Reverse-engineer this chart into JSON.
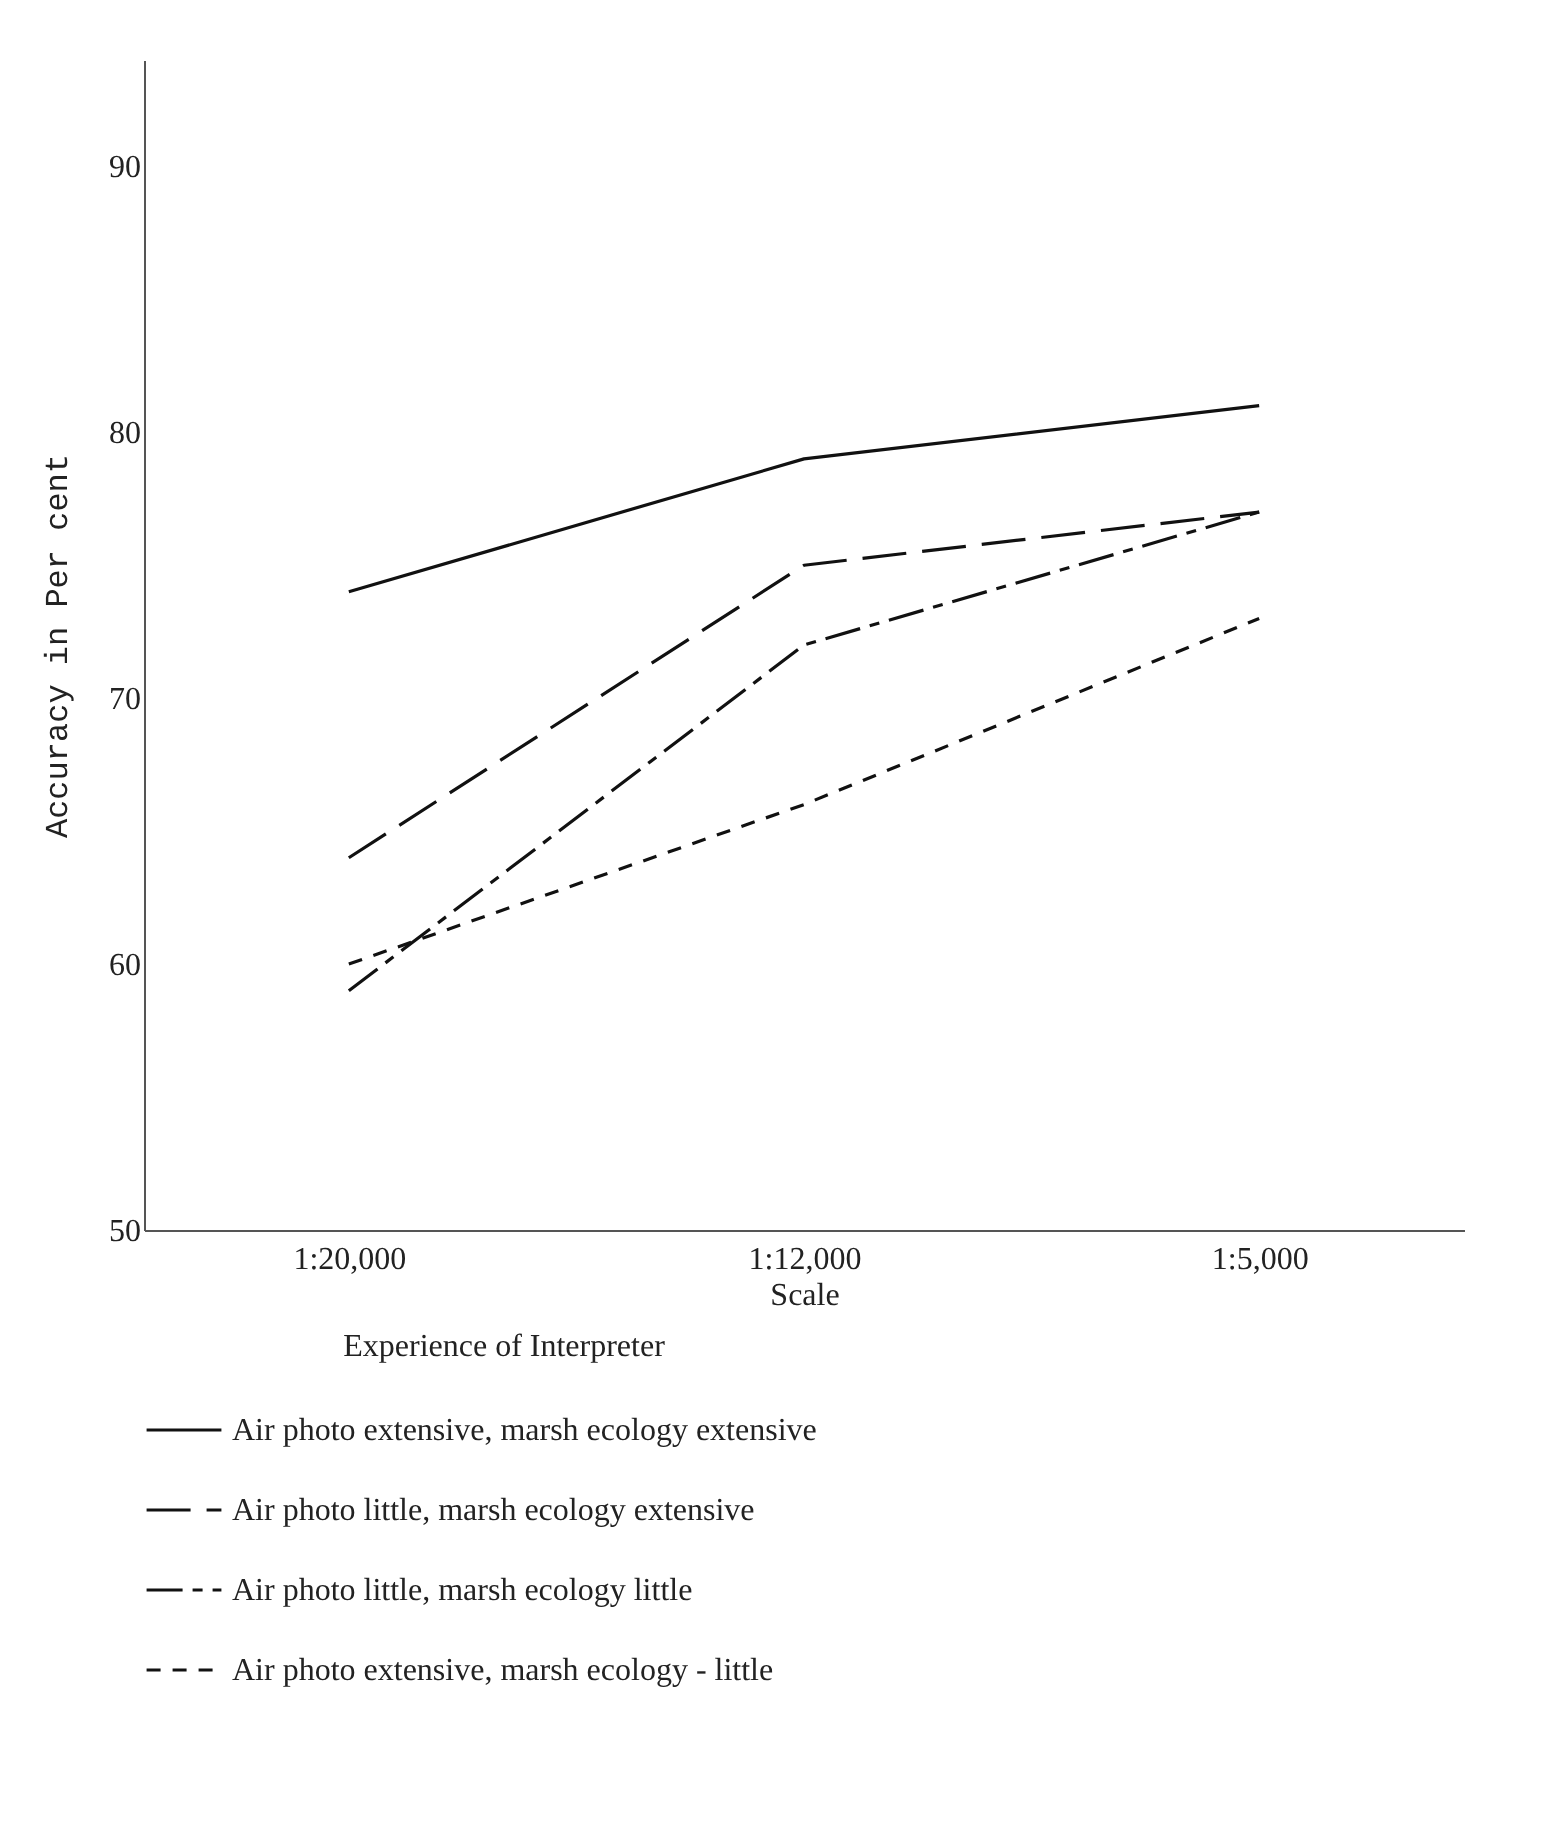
{
  "chart_data": {
    "type": "line",
    "xlabel": "Scale",
    "ylabel": "Accuracy in Per cent",
    "legend_title": "Experience of Interpreter",
    "categories": [
      "1:20,000",
      "1:12,000",
      "1:5,000"
    ],
    "ylim": [
      50,
      94
    ],
    "yticks": [
      50,
      60,
      70,
      80,
      90
    ],
    "grid": false,
    "legend": "bottom",
    "marker": "none",
    "series": [
      {
        "name": "Air photo   extensive,   marsh ecology   extensive",
        "color": "#111111",
        "line_style": "solid",
        "values": [
          74,
          79,
          81
        ]
      },
      {
        "name": "Air photo   little,   marsh ecology   extensive",
        "color": "#111111",
        "line_style": "dashed",
        "values": [
          64,
          75,
          77
        ]
      },
      {
        "name": "Air photo   little,   marsh ecology   little",
        "color": "#111111",
        "line_style": "dashdot",
        "values": [
          59,
          72,
          77
        ]
      },
      {
        "name": "Air photo   extensive,   marsh ecology - little",
        "color": "#111111",
        "line_style": "dotted",
        "values": [
          60,
          66,
          73
        ]
      }
    ]
  }
}
